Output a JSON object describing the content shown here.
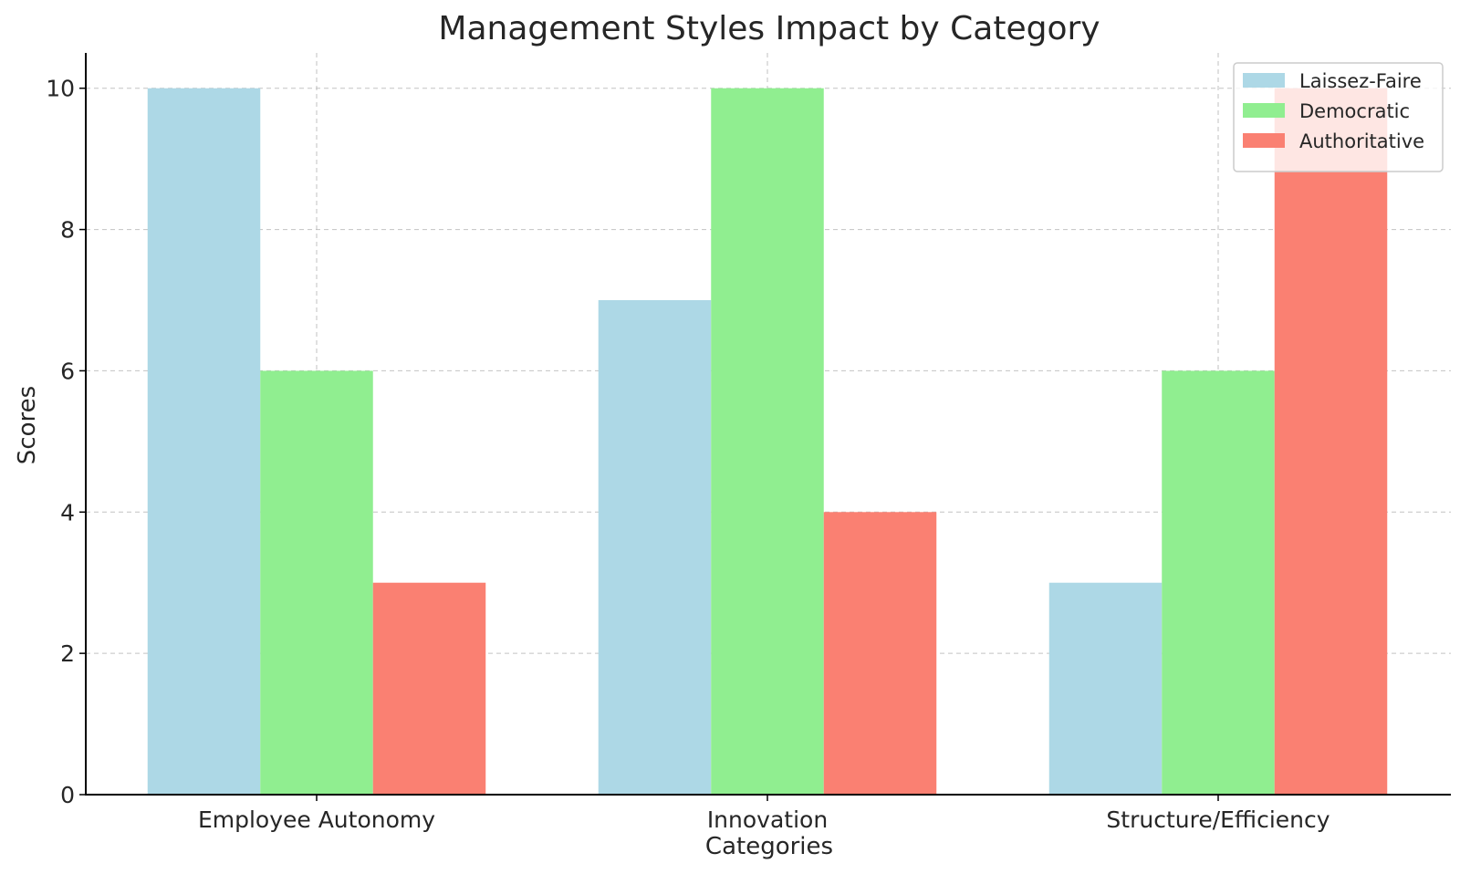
{
  "chart_data": {
    "type": "bar",
    "title": "Management Styles Impact by Category",
    "xlabel": "Categories",
    "ylabel": "Scores",
    "categories": [
      "Employee Autonomy",
      "Innovation",
      "Structure/Efficiency"
    ],
    "series": [
      {
        "name": "Laissez-Faire",
        "color": "#add8e6",
        "values": [
          10,
          7,
          3
        ]
      },
      {
        "name": "Democratic",
        "color": "#90ee90",
        "values": [
          6,
          10,
          6
        ]
      },
      {
        "name": "Authoritative",
        "color": "#fa8072",
        "values": [
          3,
          4,
          10
        ]
      }
    ],
    "ylim": [
      0,
      10.5
    ],
    "yticks": [
      0,
      2,
      4,
      6,
      8,
      10
    ],
    "grid": true,
    "legend_position": "top-right"
  }
}
